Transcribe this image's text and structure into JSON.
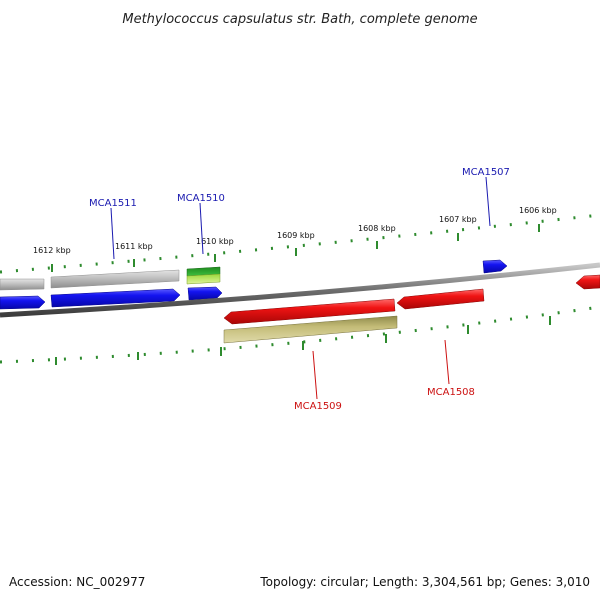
{
  "title": "Methylococcus capsulatus str. Bath, complete genome",
  "footer": {
    "accession": "Accession: NC_002977",
    "summary": "Topology: circular; Length: 3,304,561 bp; Genes: 3,010"
  },
  "colors": {
    "tick": "#2e8b2e",
    "backbone": "#7a7a7a",
    "forward_gene": "#1010e0",
    "reverse_gene": "#ee1111",
    "forward_label": "#1a1ab0",
    "reverse_label": "#cc1111",
    "forward_other": "#bdbdbd",
    "green_feature": "#2a9a2a",
    "lightgreen_feature": "#b8e04a",
    "olive_feature": "#b8b070"
  },
  "scale": {
    "ticks": [
      {
        "kbp": 1612,
        "label": "1612 kbp"
      },
      {
        "kbp": 1611,
        "label": "1611 kbp"
      },
      {
        "kbp": 1610,
        "label": "1610 kbp"
      },
      {
        "kbp": 1609,
        "label": "1609 kbp"
      },
      {
        "kbp": 1608,
        "label": "1608 kbp"
      },
      {
        "kbp": 1607,
        "label": "1607 kbp"
      },
      {
        "kbp": 1606,
        "label": "1606 kbp"
      }
    ]
  },
  "gene_labels": {
    "mca1511": "MCA1511",
    "mca1510": "MCA1510",
    "mca1509": "MCA1509",
    "mca1508": "MCA1508",
    "mca1507": "MCA1507"
  }
}
